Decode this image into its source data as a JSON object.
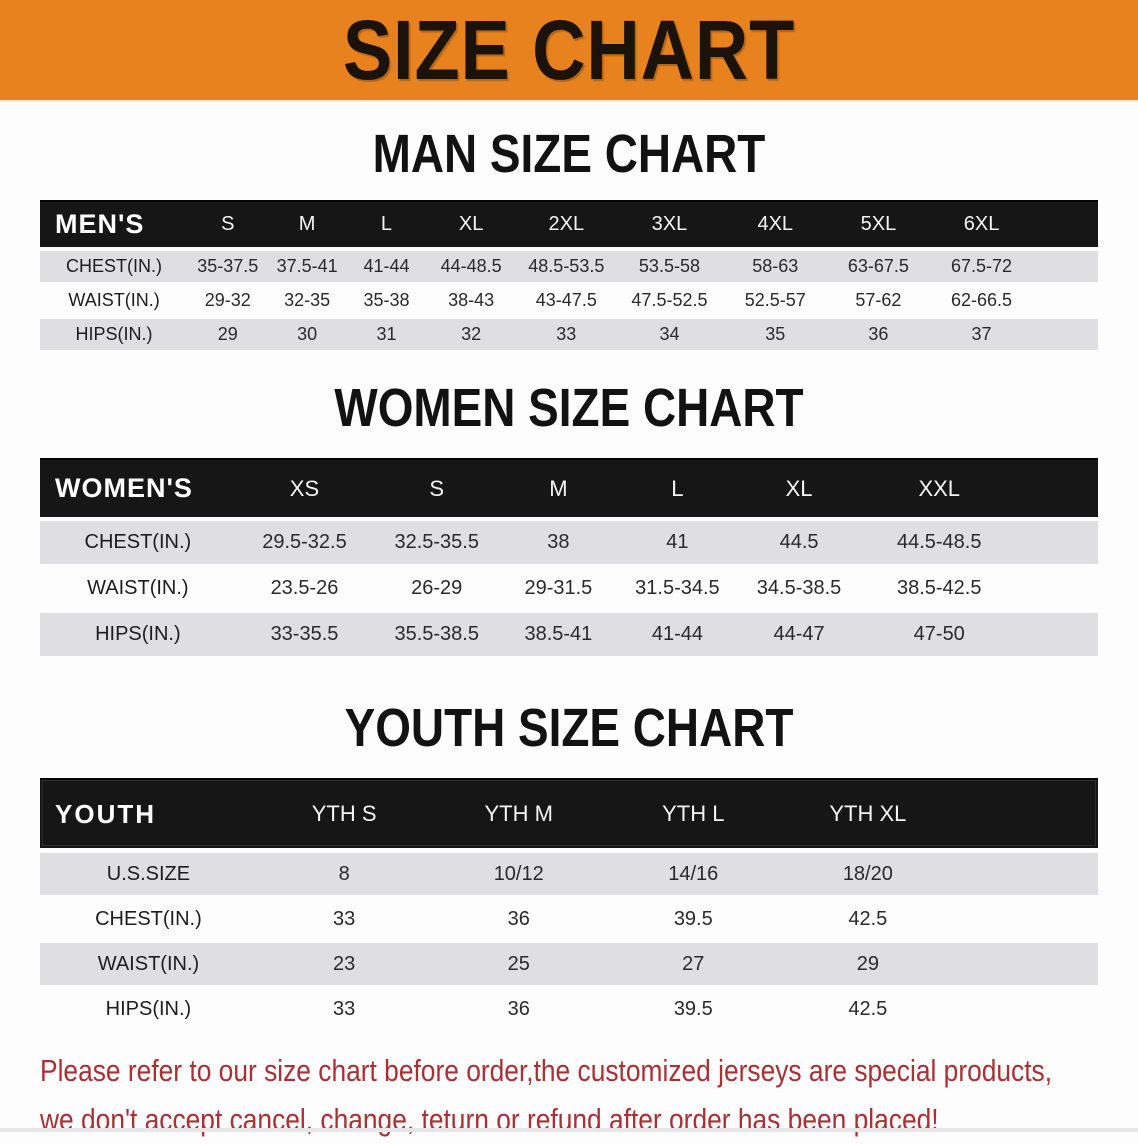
{
  "banner": {
    "title": "SIZE CHART",
    "bg_color": "#E8821E",
    "text_color": "#1B130A"
  },
  "sections": {
    "men": {
      "title": "MAN SIZE CHART",
      "header_label": "MEN'S",
      "columns": [
        "S",
        "M",
        "L",
        "XL",
        "2XL",
        "3XL",
        "4XL",
        "5XL",
        "6XL"
      ],
      "rows": [
        {
          "label": "CHEST(IN.)",
          "values": [
            "35-37.5",
            "37.5-41",
            "41-44",
            "44-48.5",
            "48.5-53.5",
            "53.5-58",
            "58-63",
            "63-67.5",
            "67.5-72"
          ]
        },
        {
          "label": "WAIST(IN.)",
          "values": [
            "29-32",
            "32-35",
            "35-38",
            "38-43",
            "43-47.5",
            "47.5-52.5",
            "52.5-57",
            "57-62",
            "62-66.5"
          ]
        },
        {
          "label": "HIPS(IN.)",
          "values": [
            "29",
            "30",
            "31",
            "32",
            "33",
            "34",
            "35",
            "36",
            "37"
          ]
        }
      ]
    },
    "women": {
      "title": "WOMEN SIZE CHART",
      "header_label": "WOMEN'S",
      "columns": [
        "XS",
        "S",
        "M",
        "L",
        "XL",
        "XXL"
      ],
      "rows": [
        {
          "label": "CHEST(IN.)",
          "values": [
            "29.5-32.5",
            "32.5-35.5",
            "38",
            "41",
            "44.5",
            "44.5-48.5"
          ]
        },
        {
          "label": "WAIST(IN.)",
          "values": [
            "23.5-26",
            "26-29",
            "29-31.5",
            "31.5-34.5",
            "34.5-38.5",
            "38.5-42.5"
          ]
        },
        {
          "label": "HIPS(IN.)",
          "values": [
            "33-35.5",
            "35.5-38.5",
            "38.5-41",
            "41-44",
            "44-47",
            "47-50"
          ]
        }
      ]
    },
    "youth": {
      "title": "YOUTH SIZE CHART",
      "header_label": "YOUTH",
      "columns": [
        "YTH S",
        "YTH M",
        "YTH L",
        "YTH XL"
      ],
      "rows": [
        {
          "label": "U.S.SIZE",
          "values": [
            "8",
            "10/12",
            "14/16",
            "18/20"
          ]
        },
        {
          "label": "CHEST(IN.)",
          "values": [
            "33",
            "36",
            "39.5",
            "42.5"
          ]
        },
        {
          "label": "WAIST(IN.)",
          "values": [
            "23",
            "25",
            "27",
            "29"
          ]
        },
        {
          "label": "HIPS(IN.)",
          "values": [
            "33",
            "36",
            "39.5",
            "42.5"
          ]
        }
      ]
    }
  },
  "footer": {
    "line1": "Please refer to our size chart before order,the customized jerseys are special products,",
    "line2": "we don't accept cancel, change, teturn or refund after order has been placed!",
    "text_color": "#A93134"
  },
  "colors": {
    "banner_orange": "#E8821E",
    "header_band_black": "#161616",
    "row_gray": "#DFDFE1",
    "row_white": "#FDFDFD",
    "note_red": "#A93134"
  }
}
